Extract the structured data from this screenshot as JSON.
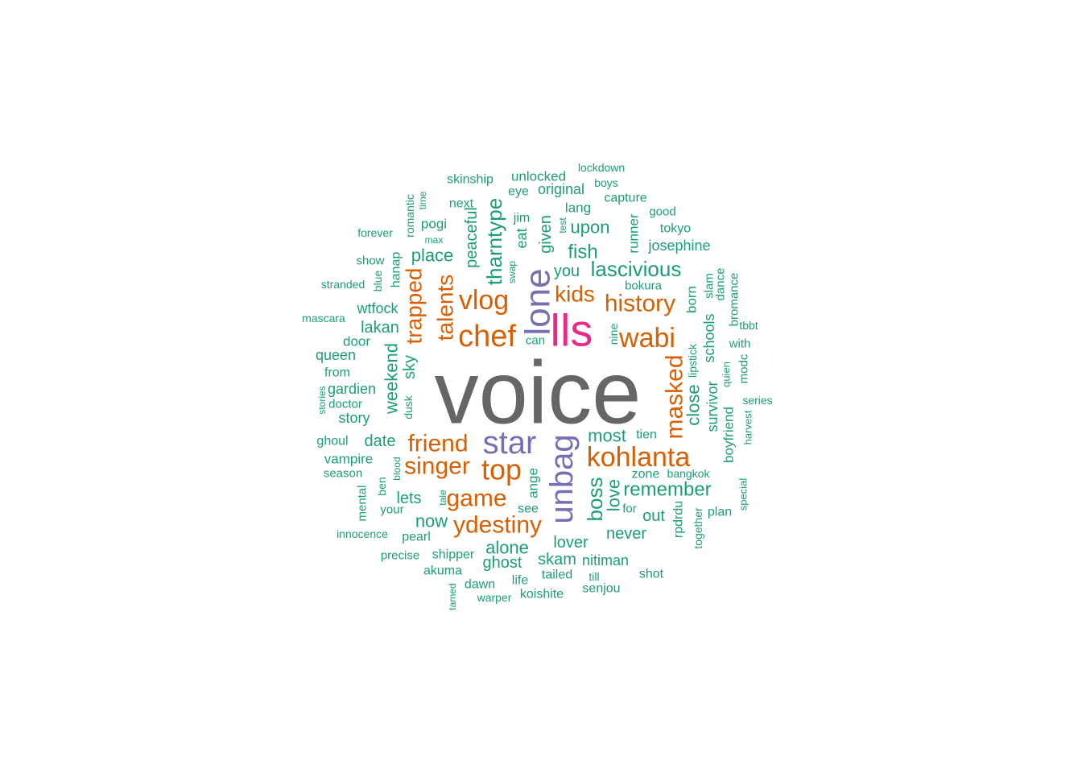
{
  "colors": {
    "background": "#ffffff",
    "tier1": "#666666",
    "tier2": "#e7298a",
    "tier3": "#7570b3",
    "tier4": "#d95f02",
    "tier5": "#1b9e77"
  },
  "chart_data": {
    "type": "wordcloud",
    "title": "",
    "words": [
      {
        "text": "voice",
        "weight": 100
      },
      {
        "text": "lls",
        "weight": 60
      },
      {
        "text": "lone",
        "weight": 45
      },
      {
        "text": "star",
        "weight": 42
      },
      {
        "text": "unbag",
        "weight": 42
      },
      {
        "text": "chef",
        "weight": 35
      },
      {
        "text": "top",
        "weight": 33
      },
      {
        "text": "vlog",
        "weight": 30
      },
      {
        "text": "wabi",
        "weight": 30
      },
      {
        "text": "kohlanta",
        "weight": 30
      },
      {
        "text": "friend",
        "weight": 28
      },
      {
        "text": "singer",
        "weight": 28
      },
      {
        "text": "game",
        "weight": 28
      },
      {
        "text": "ydestiny",
        "weight": 27
      },
      {
        "text": "history",
        "weight": 27
      },
      {
        "text": "masked",
        "weight": 27
      },
      {
        "text": "talents",
        "weight": 25
      },
      {
        "text": "kids",
        "weight": 25
      },
      {
        "text": "trapped",
        "weight": 24
      },
      {
        "text": "boss",
        "weight": 22
      },
      {
        "text": "tharntype",
        "weight": 22
      },
      {
        "text": "lascivious",
        "weight": 22
      },
      {
        "text": "remember",
        "weight": 20
      },
      {
        "text": "close",
        "weight": 19
      },
      {
        "text": "place",
        "weight": 19
      },
      {
        "text": "upon",
        "weight": 19
      },
      {
        "text": "fish",
        "weight": 19
      },
      {
        "text": "weekend",
        "weight": 19
      },
      {
        "text": "most",
        "weight": 18
      },
      {
        "text": "love",
        "weight": 18
      },
      {
        "text": "peaceful",
        "weight": 18
      },
      {
        "text": "alone",
        "weight": 18
      },
      {
        "text": "lover",
        "weight": 17
      },
      {
        "text": "never",
        "weight": 17
      },
      {
        "text": "now",
        "weight": 17
      },
      {
        "text": "lets",
        "weight": 17
      },
      {
        "text": "you",
        "weight": 17
      },
      {
        "text": "date",
        "weight": 16
      },
      {
        "text": "sky",
        "weight": 16
      },
      {
        "text": "survivor",
        "weight": 16
      },
      {
        "text": "schools",
        "weight": 16
      },
      {
        "text": "lakan",
        "weight": 16
      },
      {
        "text": "given",
        "weight": 16
      },
      {
        "text": "out",
        "weight": 16
      },
      {
        "text": "ghost",
        "weight": 16
      },
      {
        "text": "skam",
        "weight": 16
      },
      {
        "text": "eat",
        "weight": 15
      },
      {
        "text": "gardien",
        "weight": 15
      },
      {
        "text": "story",
        "weight": 15
      },
      {
        "text": "wtfock",
        "weight": 15
      },
      {
        "text": "queen",
        "weight": 15
      },
      {
        "text": "boyfriend",
        "weight": 15
      },
      {
        "text": "nitiman",
        "weight": 15
      },
      {
        "text": "ange",
        "weight": 14
      },
      {
        "text": "josephine",
        "weight": 14
      },
      {
        "text": "runner",
        "weight": 14
      },
      {
        "text": "born",
        "weight": 14
      },
      {
        "text": "original",
        "weight": 14
      },
      {
        "text": "hanap",
        "weight": 14
      },
      {
        "text": "vampire",
        "weight": 14
      },
      {
        "text": "pogi",
        "weight": 14
      },
      {
        "text": "door",
        "weight": 14
      },
      {
        "text": "ghoul",
        "weight": 14
      },
      {
        "text": "lang",
        "weight": 14
      },
      {
        "text": "see",
        "weight": 14
      },
      {
        "text": "eye",
        "weight": 14
      },
      {
        "text": "jim",
        "weight": 14
      },
      {
        "text": "unlocked",
        "weight": 14
      },
      {
        "text": "rpdrdu",
        "weight": 14
      },
      {
        "text": "dawn",
        "weight": 14
      },
      {
        "text": "plan",
        "weight": 14
      },
      {
        "text": "pearl",
        "weight": 14
      },
      {
        "text": "senjou",
        "weight": 14
      },
      {
        "text": "shipper",
        "weight": 14
      },
      {
        "text": "koishite",
        "weight": 14
      },
      {
        "text": "tien",
        "weight": 14
      },
      {
        "text": "zone",
        "weight": 14
      },
      {
        "text": "life",
        "weight": 14
      },
      {
        "text": "tailed",
        "weight": 14
      },
      {
        "text": "capture",
        "weight": 13
      },
      {
        "text": "skinship",
        "weight": 13
      },
      {
        "text": "next",
        "weight": 13
      },
      {
        "text": "tokyo",
        "weight": 13
      },
      {
        "text": "good",
        "weight": 13
      },
      {
        "text": "precise",
        "weight": 13
      },
      {
        "text": "akuma",
        "weight": 13
      },
      {
        "text": "shot",
        "weight": 13
      },
      {
        "text": "from",
        "weight": 13
      },
      {
        "text": "for",
        "weight": 13
      },
      {
        "text": "dance",
        "weight": 13
      },
      {
        "text": "slam",
        "weight": 13
      },
      {
        "text": "bromance",
        "weight": 13
      },
      {
        "text": "doctor",
        "weight": 13
      },
      {
        "text": "your",
        "weight": 13
      },
      {
        "text": "mental",
        "weight": 13
      },
      {
        "text": "season",
        "weight": 13
      },
      {
        "text": "show",
        "weight": 13
      },
      {
        "text": "together",
        "weight": 13
      },
      {
        "text": "with",
        "weight": 13
      },
      {
        "text": "modc",
        "weight": 13
      },
      {
        "text": "can",
        "weight": 13
      },
      {
        "text": "bokura",
        "weight": 13
      },
      {
        "text": "innocence",
        "weight": 12
      },
      {
        "text": "forever",
        "weight": 12
      },
      {
        "text": "lockdown",
        "weight": 12
      },
      {
        "text": "boys",
        "weight": 12
      },
      {
        "text": "mascara",
        "weight": 12
      },
      {
        "text": "stranded",
        "weight": 12
      },
      {
        "text": "series",
        "weight": 12
      },
      {
        "text": "tbbt",
        "weight": 12
      },
      {
        "text": "bangkok",
        "weight": 12
      },
      {
        "text": "warper",
        "weight": 12
      },
      {
        "text": "till",
        "weight": 12
      },
      {
        "text": "nine",
        "weight": 12
      },
      {
        "text": "lipstick",
        "weight": 12
      },
      {
        "text": "romantic",
        "weight": 12
      },
      {
        "text": "blue",
        "weight": 12
      },
      {
        "text": "dusk",
        "weight": 12
      },
      {
        "text": "ben",
        "weight": 12
      },
      {
        "text": "harvest",
        "weight": 12
      },
      {
        "text": "quien",
        "weight": 11
      },
      {
        "text": "special",
        "weight": 11
      },
      {
        "text": "blood",
        "weight": 11
      },
      {
        "text": "tale",
        "weight": 11
      },
      {
        "text": "stories",
        "weight": 11
      },
      {
        "text": "time",
        "weight": 11
      },
      {
        "text": "max",
        "weight": 11
      },
      {
        "text": "test",
        "weight": 11
      },
      {
        "text": "swap",
        "weight": 11
      },
      {
        "text": "tamed",
        "weight": 11
      }
    ]
  }
}
